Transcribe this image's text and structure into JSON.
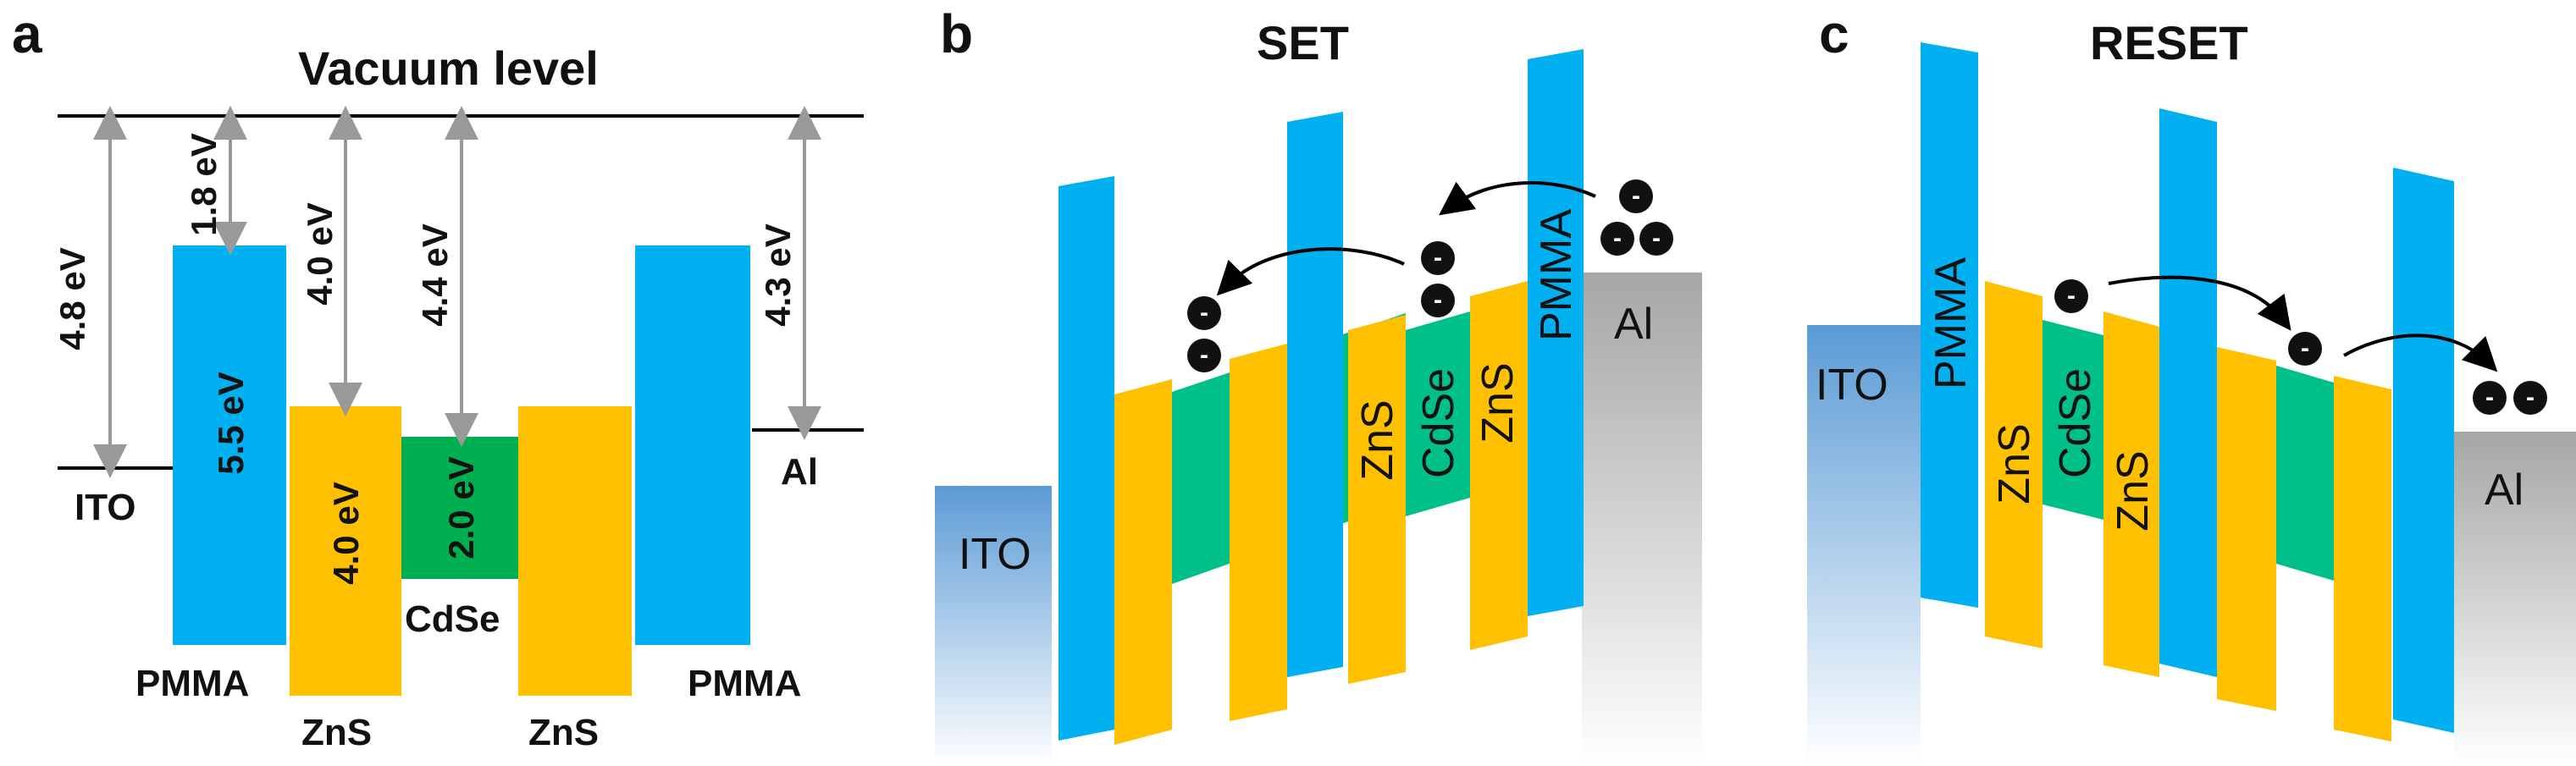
{
  "colors": {
    "pmma": "#00b0f0",
    "zns": "#ffc000",
    "cdse_a": "#00b050",
    "cdse_bc": "#00c08a",
    "electrode": "#a6a6a6",
    "ito": "#5b9bd5",
    "line": "#000000",
    "arrow": "#999999"
  },
  "panel_a": {
    "letter": "a",
    "title": "Vacuum level",
    "ito_label": "ITO",
    "al_label": "Al",
    "pmma_left_label": "PMMA",
    "pmma_right_label": "PMMA",
    "zns_left_label": "ZnS",
    "zns_right_label": "ZnS",
    "cdse_label": "CdSe",
    "ito_workfunction": "4.8 eV",
    "pmma_affinity": "1.8 eV",
    "zns_affinity": "4.0 eV",
    "cdse_affinity": "4.4 eV",
    "al_workfunction": "4.3 eV",
    "pmma_gap": "5.5 eV",
    "zns_gap": "4.0 eV",
    "cdse_gap": "2.0 eV"
  },
  "panel_b": {
    "letter": "b",
    "title": "SET",
    "ito_label": "ITO",
    "al_label": "Al",
    "zns_label_1": "ZnS",
    "cdse_label": "CdSe",
    "zns_label_2": "ZnS",
    "pmma_label": "PMMA",
    "electron_symbol": "-"
  },
  "panel_c": {
    "letter": "c",
    "title": "RESET",
    "ito_label": "ITO",
    "al_label": "Al",
    "pmma_label": "PMMA",
    "zns_label_1": "ZnS",
    "cdse_label": "CdSe",
    "zns_label_2": "ZnS",
    "electron_symbol": "-"
  }
}
